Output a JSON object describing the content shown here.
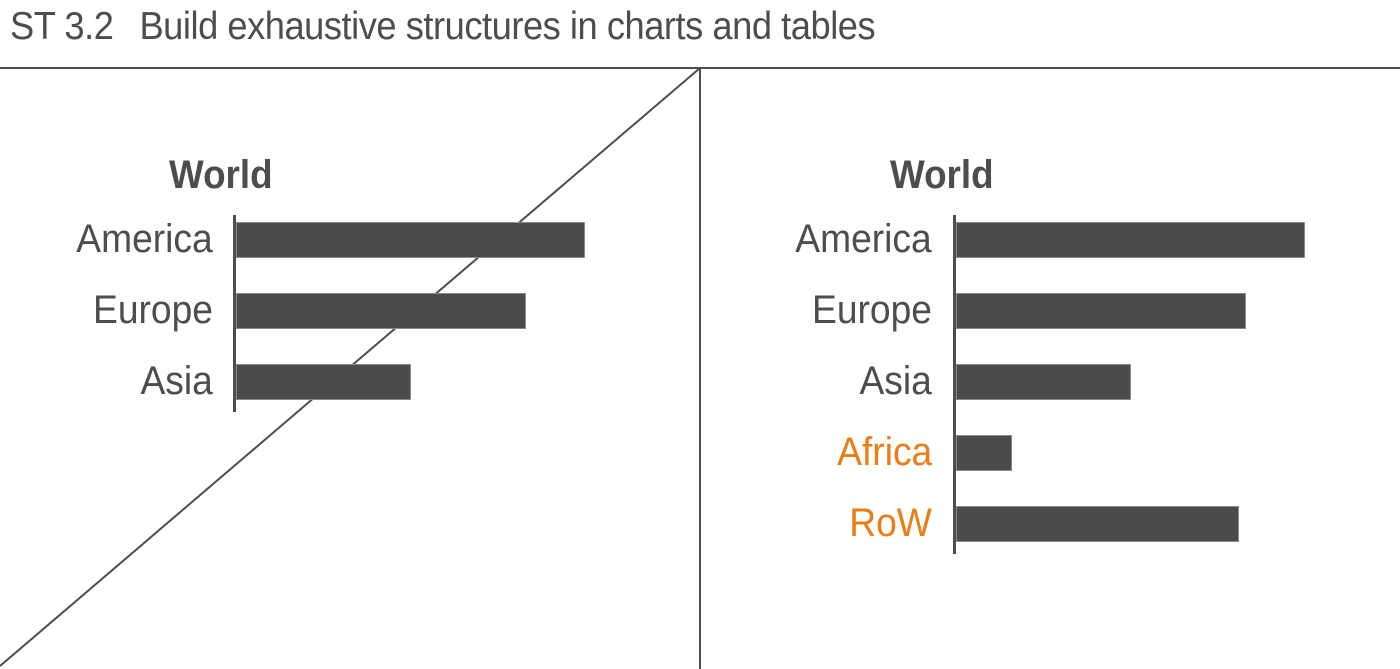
{
  "header": {
    "code": "ST 3.2",
    "title": "Build exhaustive structures in charts and tables"
  },
  "colors": {
    "text": "#4d4d4f",
    "bar": "#4b4b4d",
    "highlight": "#ea7e14",
    "background": "#ffffff"
  },
  "chart_data": [
    {
      "type": "bar",
      "orientation": "horizontal",
      "title": "World",
      "categories": [
        "America",
        "Europe",
        "Asia"
      ],
      "values": [
        100,
        83,
        50
      ],
      "value_units": "relative (America = 100), no axis scale shown",
      "xlabel": "",
      "ylabel": "",
      "grid": false,
      "legend": null,
      "annotation": "Crossed out with a diagonal line (non-exhaustive example)",
      "status": "crossed-out"
    },
    {
      "type": "bar",
      "orientation": "horizontal",
      "title": "World",
      "categories": [
        "America",
        "Europe",
        "Asia",
        "Africa",
        "RoW"
      ],
      "values": [
        100,
        83,
        50,
        16,
        81
      ],
      "value_units": "relative (America = 100), no axis scale shown",
      "highlighted_categories": [
        "Africa",
        "RoW"
      ],
      "highlight_color": "#ea7e14",
      "xlabel": "",
      "ylabel": "",
      "grid": false,
      "legend": null,
      "status": "correct"
    }
  ],
  "panels": {
    "left": {
      "title": "World",
      "rows": [
        {
          "label": "America",
          "value": 100,
          "highlight": false
        },
        {
          "label": "Europe",
          "value": 83,
          "highlight": false
        },
        {
          "label": "Asia",
          "value": 50,
          "highlight": false
        }
      ]
    },
    "right": {
      "title": "World",
      "rows": [
        {
          "label": "America",
          "value": 100,
          "highlight": false
        },
        {
          "label": "Europe",
          "value": 83,
          "highlight": false
        },
        {
          "label": "Asia",
          "value": 50,
          "highlight": false
        },
        {
          "label": "Africa",
          "value": 16,
          "highlight": true
        },
        {
          "label": "RoW",
          "value": 81,
          "highlight": true
        }
      ]
    }
  }
}
